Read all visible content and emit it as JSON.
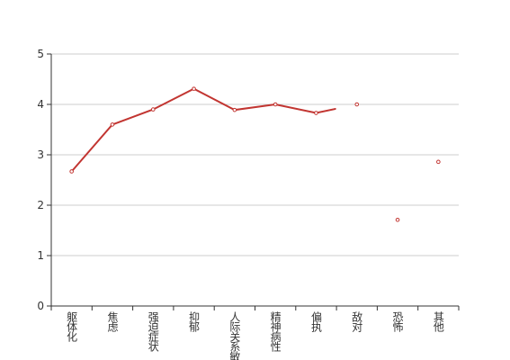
{
  "chart_data": {
    "type": "line",
    "categories": [
      "躯体化",
      "焦虑",
      "强迫症状",
      "抑郁",
      "人际关系敏感",
      "精神病性",
      "偏执",
      "敌对",
      "恐怖",
      "其他"
    ],
    "values": [
      2.67,
      3.6,
      3.9,
      4.31,
      3.89,
      4.0,
      3.83,
      4.0,
      1.71,
      2.86
    ],
    "color": "#c23531",
    "ylim": [
      0,
      5
    ],
    "yticks": [
      0,
      1,
      2,
      3,
      4,
      5
    ],
    "grid": true
  }
}
